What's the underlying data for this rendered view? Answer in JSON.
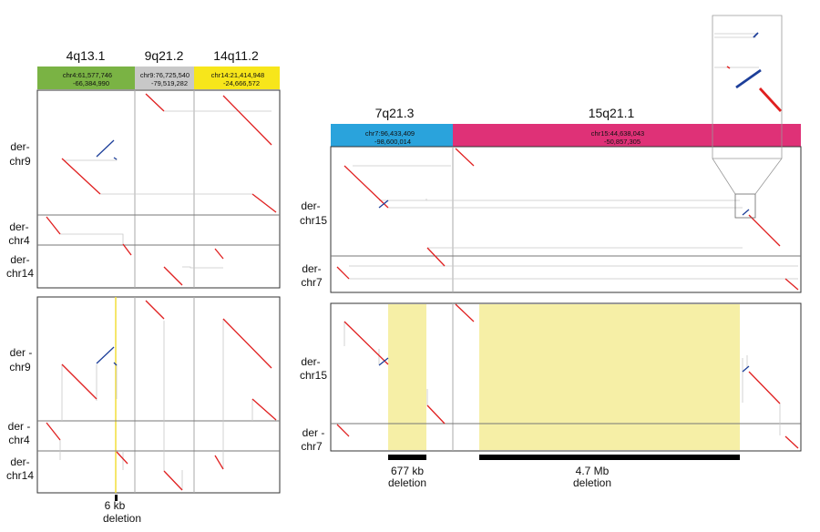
{
  "colors": {
    "chr4": "#7ab344",
    "chr9": "#c8c8c8",
    "chr14": "#f7e61b",
    "chr7": "#2aa3dc",
    "chr15": "#df3177",
    "forward_segment": "#e02020",
    "inverted_segment": "#1d3f9a",
    "deletion_highlight": "#f6efa6",
    "deletion_bar": "#000000"
  },
  "left": {
    "bands": [
      {
        "band": "4q13.1",
        "coord1": "chr4:61,577,746",
        "coord2": "-66,384,990"
      },
      {
        "band": "9q21.2",
        "coord1": "chr9:76,725,540",
        "coord2": "-79,519,282"
      },
      {
        "band": "14q11.2",
        "coord1": "chr14:21,414,948",
        "coord2": "-24,666,572"
      }
    ],
    "top_rows": [
      {
        "line1": "der-",
        "line2": "chr9"
      },
      {
        "line1": "der-",
        "line2": "chr4"
      },
      {
        "line1": "der-",
        "line2": "chr14"
      }
    ],
    "bottom_rows": [
      {
        "line1": "der -",
        "line2": "chr9"
      },
      {
        "line1": "der -",
        "line2": "chr4"
      },
      {
        "line1": "der-",
        "line2": "chr14"
      }
    ],
    "deletion": {
      "line1": "6 kb",
      "line2": "deletion"
    }
  },
  "right": {
    "bands": [
      {
        "band": "7q21.3",
        "coord1": "chr7:96,433,409",
        "coord2": "-98,600,014"
      },
      {
        "band": "15q21.1",
        "coord1": "chr15:44,638,043",
        "coord2": "-50,857,305"
      }
    ],
    "top_rows": [
      {
        "line1": "der-",
        "line2": "chr15"
      },
      {
        "line1": "der-",
        "line2": "chr7"
      }
    ],
    "bottom_rows": [
      {
        "line1": "der-",
        "line2": "chr15"
      },
      {
        "line1": "der -",
        "line2": "chr7"
      }
    ],
    "deletions": [
      {
        "line1": "677 kb",
        "line2": "deletion"
      },
      {
        "line1": "4.7 Mb",
        "line2": "deletion"
      }
    ]
  }
}
